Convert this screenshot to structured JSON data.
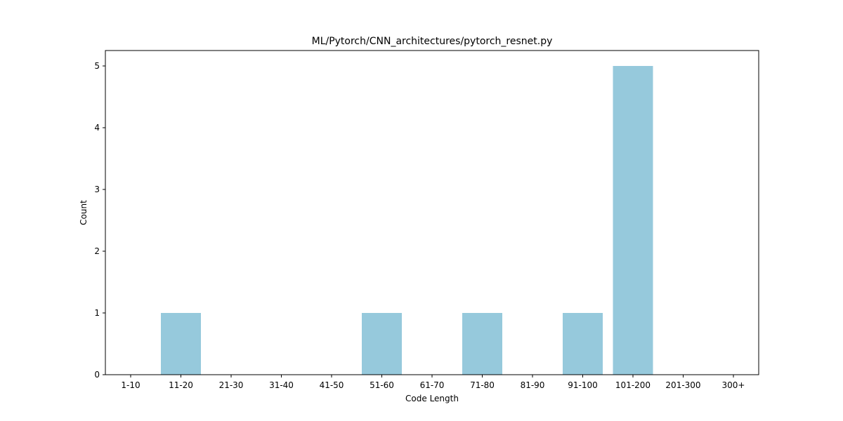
{
  "chart_data": {
    "type": "bar",
    "title": "ML/Pytorch/CNN_architectures/pytorch_resnet.py",
    "xlabel": "Code Length",
    "ylabel": "Count",
    "categories": [
      "1-10",
      "11-20",
      "21-30",
      "31-40",
      "41-50",
      "51-60",
      "61-70",
      "71-80",
      "81-90",
      "91-100",
      "101-200",
      "201-300",
      "300+"
    ],
    "values": [
      0,
      1,
      0,
      0,
      0,
      1,
      0,
      1,
      0,
      1,
      5,
      0,
      0
    ],
    "ylim": [
      0,
      5.25
    ],
    "yticks": [
      0,
      1,
      2,
      3,
      4,
      5
    ],
    "bar_color": "#96c9dc",
    "grid": false,
    "legend": "none"
  }
}
